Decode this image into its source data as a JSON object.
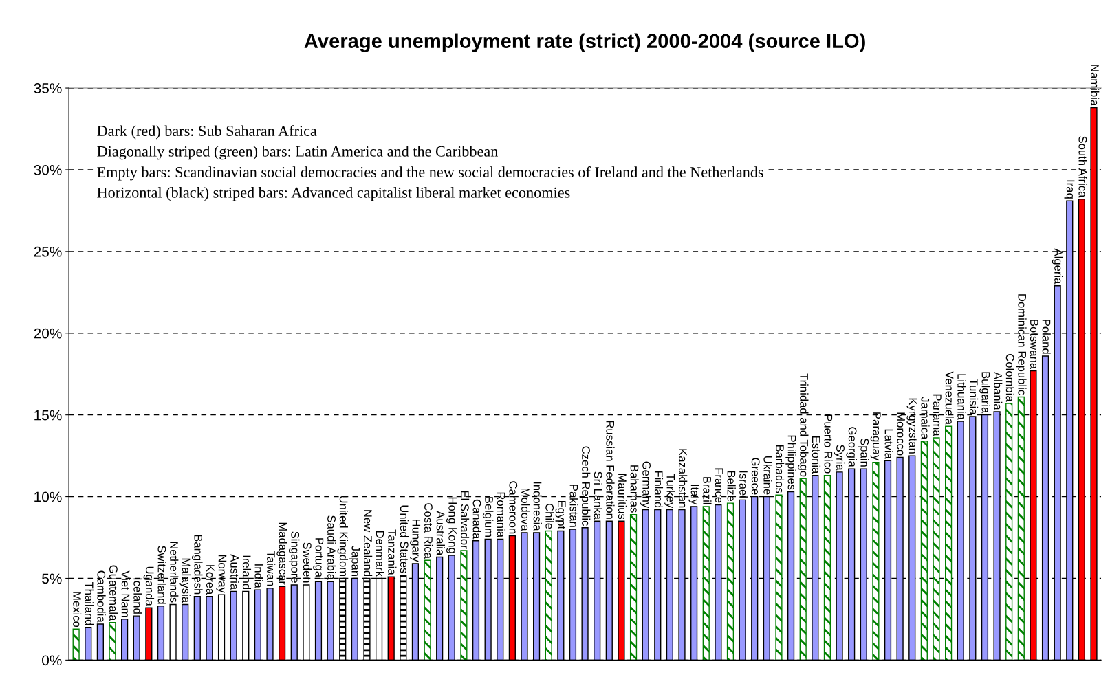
{
  "chart_data": {
    "type": "bar",
    "title": "Average unemployment rate (strict) 2000-2004 (source ILO)",
    "categories": [
      "Mexico",
      "Thailand",
      "Cambodia",
      "Guatemala",
      "Viet Nam",
      "Iceland",
      "Uganda",
      "Switzerland",
      "Netherlands",
      "Malaysia",
      "Bangladesh",
      "Korea",
      "Norway",
      "Austria",
      "Ireland",
      "India",
      "Taiwan",
      "Madagascar",
      "Singapore",
      "Sweden",
      "Portugal",
      "Saudi Arabia",
      "United Kingdom",
      "Japan",
      "New Zealand",
      "Denmark",
      "Tanzania",
      "United States",
      "Hungary",
      "Costa Rica",
      "Australia",
      "Hong Kong",
      "El Salvador",
      "Canada",
      "Belgium",
      "Romania",
      "Cameroon",
      "Moldova",
      "Indonesia",
      "Chile",
      "Egypt",
      "Pakistan",
      "Czech Republic",
      "Sri Lanka",
      "Russian Federation",
      "Mauritius",
      "Bahamas",
      "Germany",
      "Finland",
      "Turkey",
      "Kazakhstan",
      "Italy",
      "Brazil",
      "France",
      "Belize",
      "Israel",
      "Greece",
      "Ukraine",
      "Barbados",
      "Philippines",
      "Trinidad and Tobago",
      "Estonia",
      "Puerto Rico",
      "Syria",
      "Georgia",
      "Spain",
      "Paraguay",
      "Latvia",
      "Morocco",
      "Kyrgyzstan",
      "Jamaica",
      "Panama",
      "Venezuela",
      "Lithuania",
      "Tunisia",
      "Bulgaria",
      "Albania",
      "Colombia",
      "Dominican Republic",
      "Botswana",
      "Poland",
      "Algeria",
      "Iraq",
      "South Africa",
      "Namibia"
    ],
    "values": [
      1.9,
      2.0,
      2.2,
      2.3,
      2.5,
      2.7,
      3.2,
      3.3,
      3.4,
      3.4,
      3.9,
      3.9,
      4.0,
      4.2,
      4.2,
      4.3,
      4.4,
      4.5,
      4.6,
      4.6,
      4.8,
      4.8,
      5.0,
      5.0,
      5.0,
      5.0,
      5.1,
      5.2,
      5.9,
      6.1,
      6.3,
      6.4,
      6.7,
      7.3,
      7.4,
      7.4,
      7.6,
      7.8,
      7.8,
      7.9,
      7.9,
      8.0,
      8.1,
      8.5,
      8.5,
      8.5,
      8.9,
      9.2,
      9.2,
      9.2,
      9.2,
      9.4,
      9.4,
      9.5,
      9.6,
      9.8,
      10.0,
      10.0,
      10.1,
      10.3,
      11.1,
      11.3,
      11.3,
      11.5,
      11.7,
      11.7,
      12.1,
      12.2,
      12.4,
      12.5,
      13.4,
      13.6,
      14.3,
      14.6,
      14.9,
      15.0,
      15.2,
      15.7,
      16.1,
      17.7,
      18.6,
      22.9,
      28.1,
      28.2,
      33.8
    ],
    "colors": [
      "#008000",
      "#9999ff",
      "#9999ff",
      "#008000",
      "#9999ff",
      "#9999ff",
      "#ff0000",
      "#9999ff",
      "#ffffff",
      "#9999ff",
      "#9999ff",
      "#9999ff",
      "#ffffff",
      "#9999ff",
      "#ffffff",
      "#9999ff",
      "#9999ff",
      "#ff0000",
      "#9999ff",
      "#ffffff",
      "#9999ff",
      "#9999ff",
      "#000000",
      "#9999ff",
      "#000000",
      "#ffffff",
      "#ff0000",
      "#000000",
      "#9999ff",
      "#008000",
      "#9999ff",
      "#9999ff",
      "#008000",
      "#9999ff",
      "#9999ff",
      "#9999ff",
      "#ff0000",
      "#9999ff",
      "#9999ff",
      "#008000",
      "#9999ff",
      "#9999ff",
      "#9999ff",
      "#9999ff",
      "#9999ff",
      "#ff0000",
      "#008000",
      "#9999ff",
      "#9999ff",
      "#9999ff",
      "#9999ff",
      "#9999ff",
      "#008000",
      "#9999ff",
      "#008000",
      "#9999ff",
      "#9999ff",
      "#9999ff",
      "#008000",
      "#9999ff",
      "#008000",
      "#9999ff",
      "#008000",
      "#9999ff",
      "#9999ff",
      "#9999ff",
      "#008000",
      "#9999ff",
      "#9999ff",
      "#9999ff",
      "#008000",
      "#008000",
      "#008000",
      "#9999ff",
      "#9999ff",
      "#9999ff",
      "#9999ff",
      "#008000",
      "#008000",
      "#ff0000",
      "#9999ff",
      "#9999ff",
      "#9999ff",
      "#ff0000",
      "#ff0000"
    ],
    "ylim": [
      0,
      35
    ],
    "yticks": [
      {
        "value": 0,
        "label": "0%"
      },
      {
        "value": 5,
        "label": "5%"
      },
      {
        "value": 10,
        "label": "10%"
      },
      {
        "value": 15,
        "label": "15%"
      },
      {
        "value": 20,
        "label": "20%"
      },
      {
        "value": 25,
        "label": "25%"
      },
      {
        "value": 30,
        "label": "30%"
      },
      {
        "value": 35,
        "label": "35%"
      }
    ],
    "grid": "y",
    "tick_labels": "y",
    "annotations": [
      "Dark (red) bars: Sub Saharan Africa",
      "Diagonally striped (green) bars: Latin America and the Caribbean",
      "Empty bars: Scandinavian social democracies and the new social democracies of Ireland and the Netherlands",
      "Horizontal (black) striped bars: Advanced capitalist liberal market economies"
    ]
  }
}
